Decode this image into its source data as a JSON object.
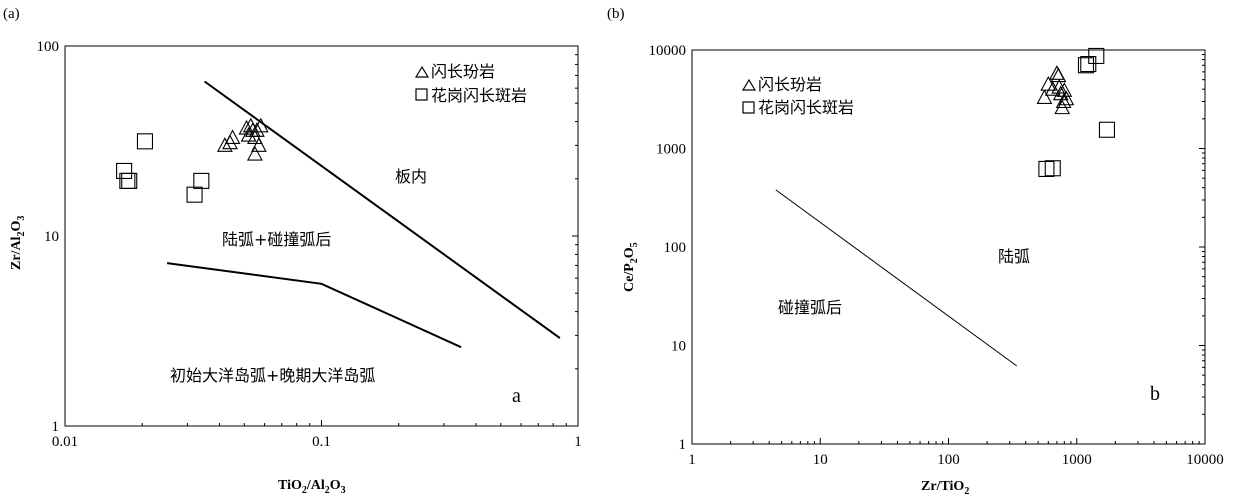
{
  "chart_data": [
    {
      "type": "scatter",
      "panel_label": "(a)",
      "corner_label": "a",
      "xaxis": {
        "scale": "log",
        "range": [
          0.01,
          1
        ],
        "ticks": [
          "0.01",
          "0.1",
          "1"
        ]
      },
      "yaxis": {
        "scale": "log",
        "range": [
          1,
          100
        ],
        "ticks": [
          "1",
          "10",
          "100"
        ]
      },
      "legend": {
        "placement": "top-right",
        "entries": [
          {
            "symbol": "triangle",
            "label": "闪长玢岩"
          },
          {
            "symbol": "square",
            "label": "花岗闪长斑岩"
          }
        ]
      },
      "regions": [
        "板内",
        "陆弧+碰撞弧后",
        "初始大洋岛弧+晚期大洋岛弧"
      ],
      "boundary_lines": [
        [
          [
            0.035,
            65
          ],
          [
            0.85,
            2.9
          ]
        ],
        [
          [
            0.025,
            7.2
          ],
          [
            0.1,
            5.6
          ],
          [
            0.35,
            2.6
          ]
        ]
      ],
      "series": [
        {
          "name": "闪长玢岩",
          "symbol": "triangle",
          "points": [
            [
              0.042,
              30
            ],
            [
              0.044,
              31
            ],
            [
              0.045,
              33
            ],
            [
              0.051,
              37
            ],
            [
              0.052,
              34
            ],
            [
              0.053,
              38
            ],
            [
              0.054,
              36
            ],
            [
              0.055,
              33
            ],
            [
              0.055,
              27
            ],
            [
              0.056,
              36
            ],
            [
              0.057,
              30
            ],
            [
              0.058,
              38
            ]
          ]
        },
        {
          "name": "花岗闪长斑岩",
          "symbol": "square",
          "points": [
            [
              0.017,
              22
            ],
            [
              0.0175,
              19.5
            ],
            [
              0.0178,
              19.5
            ],
            [
              0.0205,
              31.5
            ],
            [
              0.032,
              16.5
            ],
            [
              0.034,
              19.5
            ]
          ]
        }
      ]
    },
    {
      "type": "scatter",
      "panel_label": "(b)",
      "corner_label": "b",
      "xaxis": {
        "scale": "log",
        "range": [
          1,
          10000
        ],
        "ticks": [
          "1",
          "10",
          "100",
          "1000",
          "10000"
        ]
      },
      "yaxis": {
        "scale": "log",
        "range": [
          1,
          10000
        ],
        "ticks": [
          "1",
          "10",
          "100",
          "1000",
          "10000"
        ]
      },
      "legend": {
        "placement": "top-left",
        "entries": [
          {
            "symbol": "triangle",
            "label": "闪长玢岩"
          },
          {
            "symbol": "square",
            "label": "花岗闪长斑岩"
          }
        ]
      },
      "regions": [
        "陆弧",
        "碰撞弧后"
      ],
      "boundary_lines": [
        [
          [
            4.5,
            380
          ],
          [
            340,
            6.2
          ]
        ]
      ],
      "series": [
        {
          "name": "闪长玢岩",
          "symbol": "triangle",
          "points": [
            [
              560,
              3300
            ],
            [
              600,
              4500
            ],
            [
              650,
              4000
            ],
            [
              700,
              5800
            ],
            [
              720,
              5500
            ],
            [
              730,
              4200
            ],
            [
              750,
              3600
            ],
            [
              770,
              2600
            ],
            [
              790,
              3000
            ],
            [
              800,
              3900
            ],
            [
              830,
              3200
            ]
          ]
        },
        {
          "name": "花岗闪长斑岩",
          "symbol": "square",
          "points": [
            [
              580,
              620
            ],
            [
              650,
              630
            ],
            [
              1180,
              7000
            ],
            [
              1230,
              7200
            ],
            [
              1420,
              8700
            ],
            [
              1720,
              1550
            ]
          ]
        }
      ]
    }
  ],
  "axes_titles": {
    "a_x": {
      "main": "TiO",
      "sub1": "2",
      "mid": "/Al",
      "sub2": "2",
      "end": "O",
      "sub3": "3"
    },
    "a_y": {
      "main": "Zr/Al",
      "sub1": "2",
      "end": "O",
      "sub2": "3"
    },
    "b_x": {
      "main": "Zr/TiO",
      "sub1": "2"
    },
    "b_y": {
      "main": "Ce/P",
      "sub1": "2",
      "end": "O",
      "sub2": "5"
    }
  }
}
